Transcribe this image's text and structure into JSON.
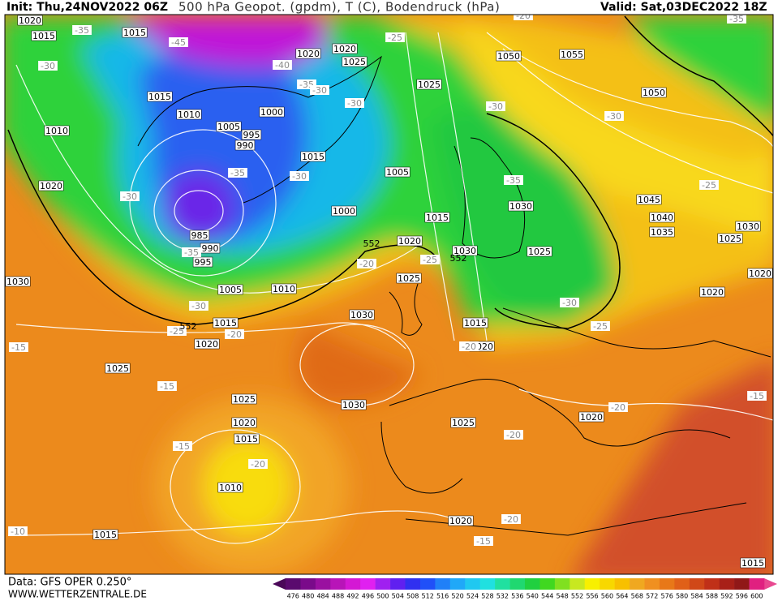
{
  "header": {
    "init": "Init: Thu,24NOV2022 06Z",
    "title": "500 hPa Geopot. (gpdm), T (C), Bodendruck (hPa)",
    "valid": "Valid: Sat,03DEC2022 18Z"
  },
  "footer": {
    "data": "Data: GFS OPER 0.250°",
    "site": "WWW.WETTERZENTRALE.DE"
  },
  "legend": {
    "ticks": [
      476,
      480,
      484,
      488,
      492,
      496,
      500,
      504,
      508,
      512,
      516,
      520,
      524,
      528,
      532,
      536,
      540,
      544,
      548,
      552,
      556,
      560,
      564,
      568,
      572,
      576,
      580,
      584,
      588,
      592,
      596,
      600
    ],
    "colors": [
      "#5a0a6e",
      "#7a0a8a",
      "#9a10a0",
      "#b814b8",
      "#d418d4",
      "#e020f0",
      "#a020f0",
      "#6020f0",
      "#3030f0",
      "#2050f8",
      "#2080f8",
      "#20a8f8",
      "#20c8f0",
      "#20e0e0",
      "#20e0a0",
      "#20d870",
      "#20d040",
      "#40d820",
      "#80e020",
      "#c8e820",
      "#f8f000",
      "#f8d800",
      "#f8c000",
      "#f0a820",
      "#f09020",
      "#e87818",
      "#e06018",
      "#d04818",
      "#c03018",
      "#a82018",
      "#901818",
      "#e02080"
    ]
  },
  "labels": {
    "pressure": [
      1020,
      1015,
      1015,
      1015,
      1010,
      1010,
      1005,
      995,
      990,
      1000,
      1020,
      1025,
      1020,
      1015,
      1005,
      1000,
      1025,
      1015,
      1020,
      1030,
      1025,
      1020,
      985,
      990,
      995,
      1005,
      1010,
      1030,
      1015,
      1020,
      1030,
      1025,
      1025,
      1030,
      1020,
      1015,
      1010,
      1015,
      1025,
      1020,
      1015,
      1020,
      1050,
      1055,
      1050,
      1045,
      1040,
      1035,
      1030,
      1025,
      1030,
      1025,
      1020,
      1020,
      1020,
      1015
    ],
    "temperature": [
      -35,
      -45,
      -40,
      -35,
      -30,
      -30,
      -25,
      -30,
      -30,
      -35,
      -30,
      -35,
      -20,
      -25,
      -30,
      -30,
      -35,
      -25,
      -30,
      -25,
      -30,
      -25,
      -20,
      -15,
      -15,
      -15,
      -20,
      -10,
      -20,
      -20,
      -15,
      -20,
      -15,
      -35,
      -20,
      -20
    ],
    "geopotential": [
      552,
      552,
      552
    ]
  }
}
